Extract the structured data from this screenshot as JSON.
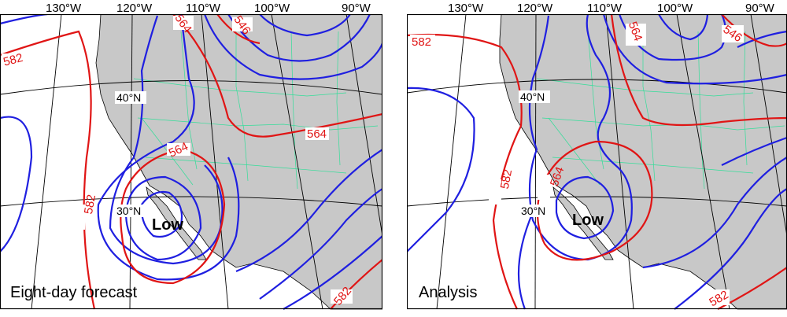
{
  "panels": [
    {
      "caption": "Eight-day forecast",
      "lon_labels": [
        "130°W",
        "120°W",
        "110°W",
        "100°W",
        "90°W"
      ],
      "lat_labels": [
        "40°N",
        "30°N"
      ],
      "low_label": "Low",
      "contour_labels": [
        "582",
        "564",
        "546",
        "564",
        "564",
        "582",
        "582"
      ]
    },
    {
      "caption": "Analysis",
      "lon_labels": [
        "130°W",
        "120°W",
        "110°W",
        "100°W",
        "90°W"
      ],
      "lat_labels": [
        "40°N",
        "30°N"
      ],
      "low_label": "Low",
      "contour_labels": [
        "582",
        "564",
        "546",
        "582",
        "564",
        "582"
      ]
    }
  ],
  "colors": {
    "contour_564_582": "#e01515",
    "contour_other": "#1f1fe0",
    "land": "#c8c8c8",
    "state_borders": "#33dd99"
  }
}
